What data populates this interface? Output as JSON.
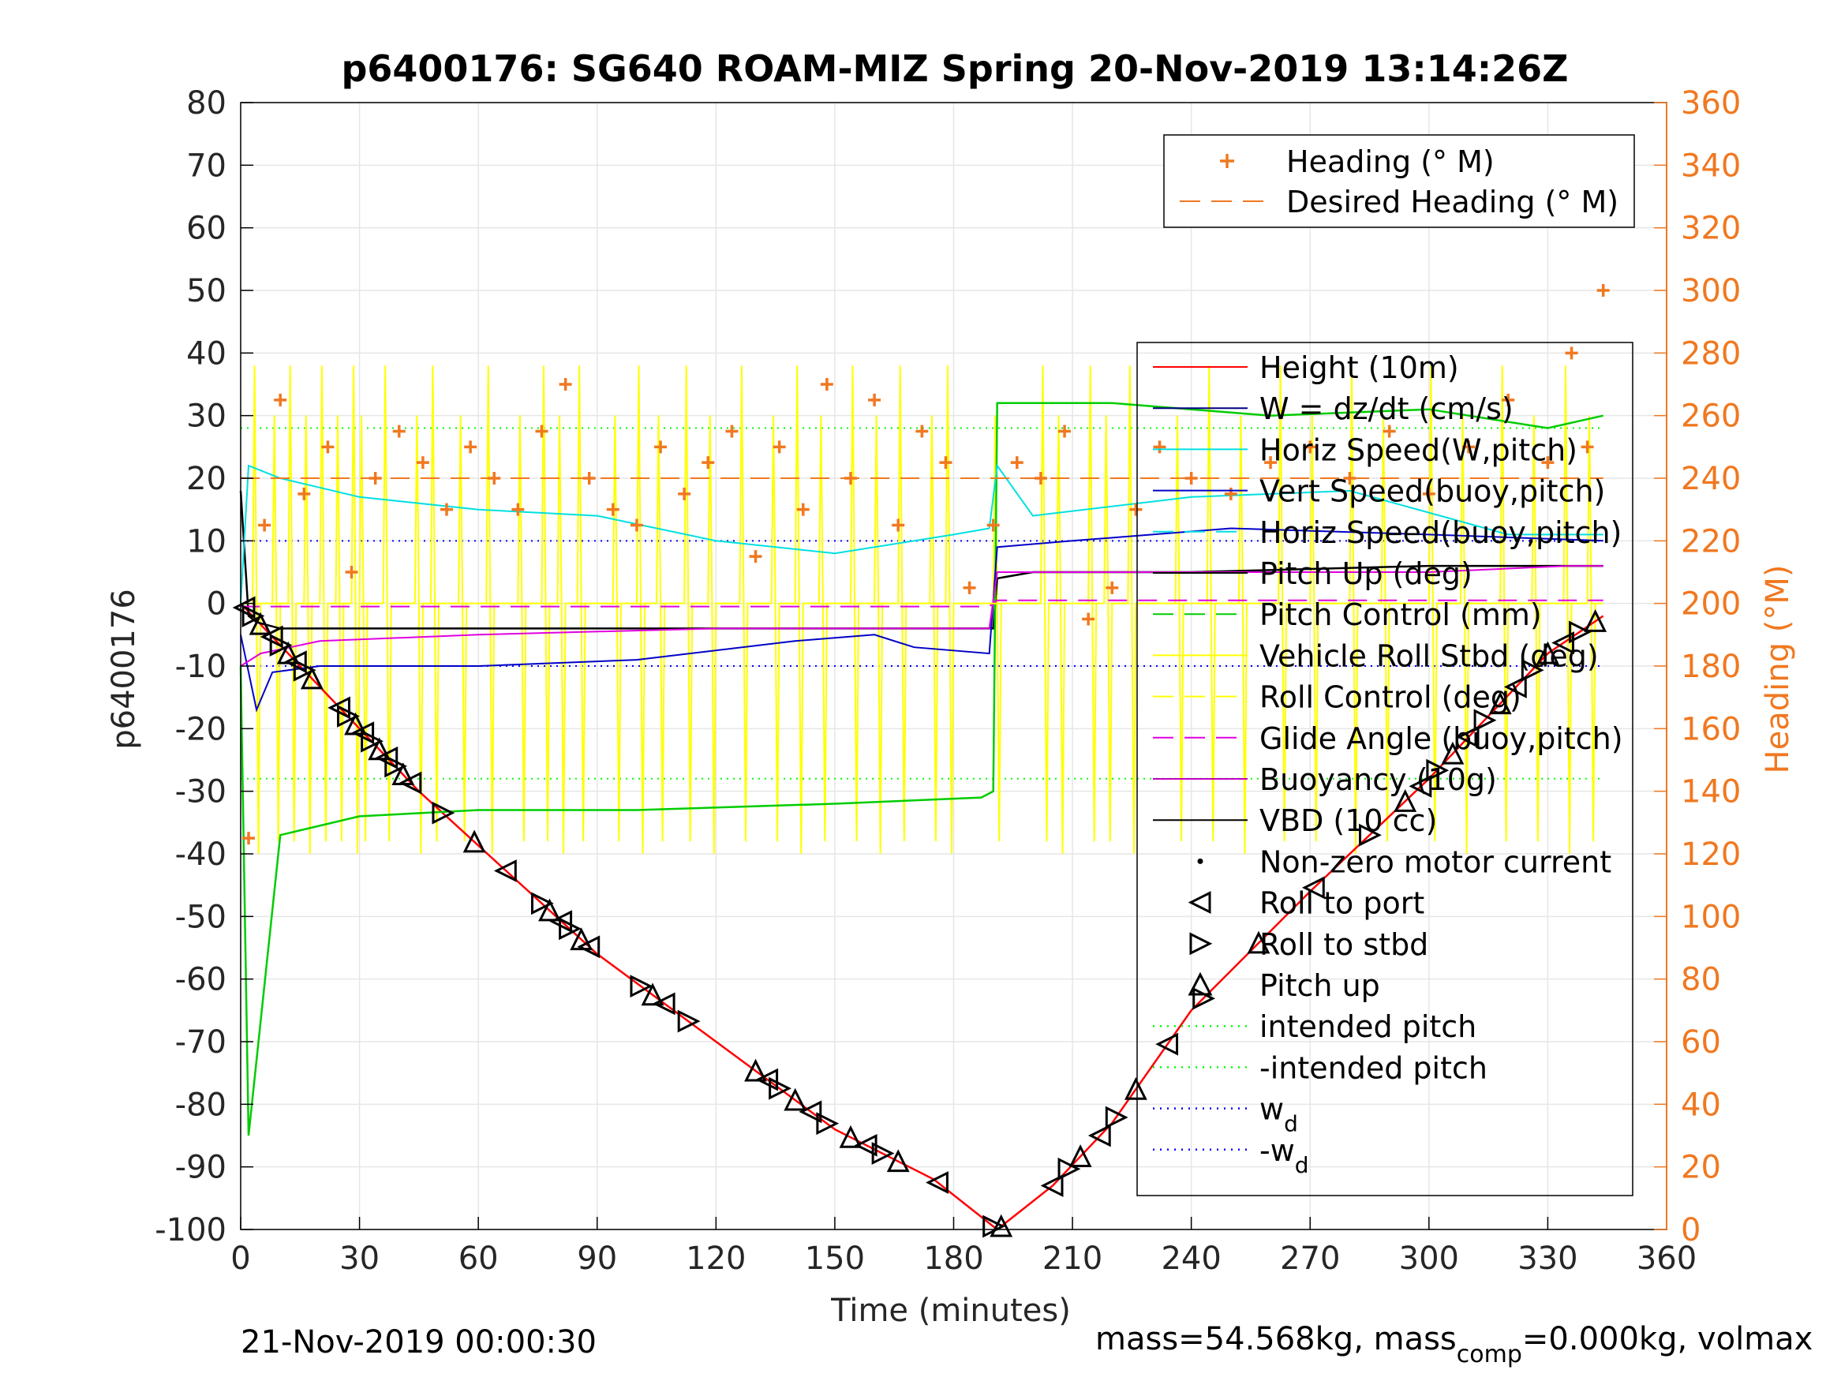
{
  "chart_data": {
    "type": "line",
    "title": "p6400176: SG640 ROAM-MIZ Spring 20-Nov-2019 13:14:26Z",
    "xlabel": "Time (minutes)",
    "ylabel": "p6400176",
    "y2label": "Heading (°M)",
    "xlim": [
      0,
      360
    ],
    "ylim": [
      -100,
      80
    ],
    "y2lim": [
      0,
      360
    ],
    "xticks": [
      0,
      30,
      60,
      90,
      120,
      150,
      180,
      210,
      240,
      270,
      300,
      330,
      360
    ],
    "yticks": [
      -100,
      -90,
      -80,
      -70,
      -60,
      -50,
      -40,
      -30,
      -20,
      -10,
      0,
      10,
      20,
      30,
      40,
      50,
      60,
      70,
      80
    ],
    "y2ticks": [
      0,
      20,
      40,
      60,
      80,
      100,
      120,
      140,
      160,
      180,
      200,
      220,
      240,
      260,
      280,
      300,
      320,
      340,
      360
    ],
    "grid": true,
    "footer_left": "21-Nov-2019 00:00:30",
    "footer_right": "mass=54.568kg, mass",
    "footer_right_sub": "comp",
    "footer_right_tail": "=0.000kg, volmax",
    "colors": {
      "heading": "#f07820",
      "height": "#ff0000",
      "w": "#000080",
      "horiz": "#00e0e0",
      "vert": "#0000c8",
      "pitch_control": "#00cc00",
      "roll": "#ffff00",
      "glide": "#e000e0",
      "vbd": "#000000"
    },
    "legend_heading": [
      {
        "label": "Heading (° M)",
        "marker": "plus"
      },
      {
        "label": "Desired Heading (° M)",
        "marker": "dash"
      }
    ],
    "legend_main": [
      {
        "label": "Height (10m)",
        "marker": "solid",
        "color": "#ff0000"
      },
      {
        "label": "W = dz/dt (cm/s)",
        "marker": "solid",
        "color": "#000080"
      },
      {
        "label": "Horiz Speed(W,pitch)",
        "marker": "solid",
        "color": "#00e0e0"
      },
      {
        "label": "Vert Speed(buoy,pitch)",
        "marker": "solid",
        "color": "#0000c8"
      },
      {
        "label": "Horiz Speed(buoy,pitch)",
        "marker": "dash",
        "color": "#00e0e0"
      },
      {
        "label": "Pitch Up (deg)",
        "marker": "solid",
        "color": "#000000"
      },
      {
        "label": "Pitch Control (mm)",
        "marker": "dash",
        "color": "#00cc00"
      },
      {
        "label": "Vehicle Roll Stbd (deg)",
        "marker": "solid",
        "color": "#ffff00"
      },
      {
        "label": "Roll Control (deg)",
        "marker": "dash",
        "color": "#ffff00"
      },
      {
        "label": "Glide Angle (buoy,pitch)",
        "marker": "dash",
        "color": "#e000e0"
      },
      {
        "label": "Buoyancy (10g)",
        "marker": "solid",
        "color": "#c000c0"
      },
      {
        "label": "VBD (10 cc)",
        "marker": "solid",
        "color": "#000000"
      },
      {
        "label": "Non-zero motor current",
        "marker": "dot",
        "color": "#000000"
      },
      {
        "label": "Roll to port",
        "marker": "tri-left",
        "color": "#000000"
      },
      {
        "label": "Roll to stbd",
        "marker": "tri-right",
        "color": "#000000"
      },
      {
        "label": "Pitch up",
        "marker": "tri-up",
        "color": "#000000"
      },
      {
        "label": "intended pitch",
        "marker": "dot-line",
        "color": "#00ff00"
      },
      {
        "label": "-intended pitch",
        "marker": "dot-line",
        "color": "#00ff00"
      },
      {
        "label": "w",
        "sub": "d",
        "marker": "dot-line",
        "color": "#0000ff"
      },
      {
        "label": "-w",
        "sub": "d",
        "marker": "dot-line",
        "color": "#0000ff"
      }
    ],
    "series": [
      {
        "name": "Height (10m)",
        "x": [
          0,
          45,
          90,
          135,
          150,
          175,
          191,
          205,
          220,
          240,
          270,
          300,
          330,
          344
        ],
        "y": [
          0,
          -30,
          -56,
          -77,
          -84,
          -92,
          -100,
          -93,
          -83,
          -65,
          -46,
          -28,
          -8,
          -2
        ]
      },
      {
        "name": "Pitch Up (deg)",
        "x": [
          0,
          2,
          4,
          10,
          60,
          120,
          188,
          190,
          191,
          200,
          240,
          300,
          344
        ],
        "y": [
          18,
          -2,
          -3,
          -4,
          -4,
          -4,
          -4,
          -4,
          4,
          5,
          5,
          6,
          6
        ]
      },
      {
        "name": "Pitch Control (mm)",
        "x": [
          0,
          2,
          10,
          30,
          60,
          100,
          150,
          187,
          190,
          191,
          220,
          260,
          300,
          330,
          344
        ],
        "y": [
          -10,
          -85,
          -37,
          -34,
          -33,
          -33,
          -32,
          -31,
          -30,
          32,
          32,
          30,
          31,
          28,
          30
        ]
      },
      {
        "name": "Horiz Speed(W,pitch)",
        "x": [
          0,
          2,
          10,
          30,
          60,
          90,
          120,
          150,
          180,
          189,
          191,
          200,
          240,
          280,
          320,
          344
        ],
        "y": [
          0,
          22,
          20,
          17,
          15,
          14,
          10,
          8,
          11,
          12,
          22,
          14,
          17,
          18,
          11,
          11
        ]
      },
      {
        "name": "W = dz/dt (cm/s)",
        "x": [
          0,
          4,
          8,
          20,
          60,
          100,
          140,
          160,
          170,
          189,
          191,
          210,
          250,
          300,
          344
        ],
        "y": [
          -5,
          -17,
          -11,
          -10,
          -10,
          -9,
          -6,
          -5,
          -7,
          -8,
          9,
          10,
          12,
          11,
          10
        ]
      },
      {
        "name": "Buoyancy (10g)",
        "x": [
          0,
          5,
          20,
          60,
          120,
          189,
          191,
          240,
          300,
          335,
          344
        ],
        "y": [
          -10,
          -8,
          -6,
          -5,
          -4,
          -4,
          5,
          5,
          5,
          6,
          6
        ]
      },
      {
        "name": "Glide Angle (buoy,pitch)",
        "x": [
          0,
          189,
          191,
          344
        ],
        "y": [
          -0.5,
          -0.5,
          0.5,
          0.5
        ]
      },
      {
        "name": "Roll Control (deg)",
        "x": [
          0,
          344
        ],
        "y": [
          0,
          0
        ]
      },
      {
        "name": "Heading (° M)",
        "axis": "y2",
        "x": [
          2,
          6,
          10,
          16,
          22,
          28,
          34,
          40,
          46,
          52,
          58,
          64,
          70,
          76,
          82,
          88,
          94,
          100,
          106,
          112,
          118,
          124,
          130,
          136,
          142,
          148,
          154,
          160,
          166,
          172,
          178,
          184,
          190,
          196,
          202,
          208,
          214,
          220,
          226,
          232,
          240,
          250,
          260,
          270,
          280,
          290,
          300,
          310,
          320,
          330,
          336,
          340,
          344
        ],
        "y": [
          125,
          225,
          265,
          235,
          250,
          210,
          240,
          255,
          245,
          230,
          250,
          240,
          230,
          255,
          270,
          240,
          230,
          225,
          250,
          235,
          245,
          255,
          215,
          250,
          230,
          270,
          240,
          265,
          225,
          255,
          245,
          205,
          225,
          245,
          240,
          255,
          195,
          205,
          230,
          250,
          240,
          235,
          245,
          250,
          240,
          255,
          235,
          250,
          265,
          245,
          280,
          250,
          300
        ]
      },
      {
        "name": "Desired Heading (° M)",
        "axis": "y2",
        "x": [
          0,
          344
        ],
        "y": [
          240,
          240
        ]
      }
    ],
    "hlines": [
      {
        "name": "intended pitch",
        "y": 28,
        "color": "#00ff00"
      },
      {
        "name": "-intended pitch",
        "y": -28,
        "color": "#00ff00"
      },
      {
        "name": "w_d",
        "y": 10,
        "color": "#0000ff"
      },
      {
        "name": "-w_d",
        "y": -10,
        "color": "#0000ff"
      }
    ],
    "roll_spikes_x": [
      3,
      8,
      12,
      16,
      20,
      24,
      28,
      30,
      36,
      44,
      48,
      55,
      62,
      70,
      76,
      80,
      85,
      94,
      100,
      105,
      112,
      118,
      126,
      134,
      140,
      146,
      154,
      160,
      166,
      174,
      178,
      190,
      202,
      206,
      214,
      218,
      224,
      236,
      244,
      252,
      262,
      270,
      280,
      288,
      300,
      308,
      318,
      326,
      334,
      340
    ],
    "markers_x": [
      1,
      3,
      5,
      8,
      10,
      12,
      14,
      16,
      18,
      25,
      27,
      29,
      31,
      33,
      35,
      37,
      39,
      41,
      43,
      51,
      59,
      67,
      76,
      78,
      81,
      83,
      86,
      88,
      101,
      104,
      107,
      113,
      130,
      133,
      136,
      140,
      144,
      148,
      154,
      158,
      162,
      166,
      176,
      190,
      192,
      205,
      209,
      212,
      217,
      221,
      226,
      234,
      243,
      257,
      271,
      285,
      294,
      298,
      302,
      306,
      310,
      314,
      318,
      322,
      326,
      330,
      334,
      338,
      342
    ]
  }
}
